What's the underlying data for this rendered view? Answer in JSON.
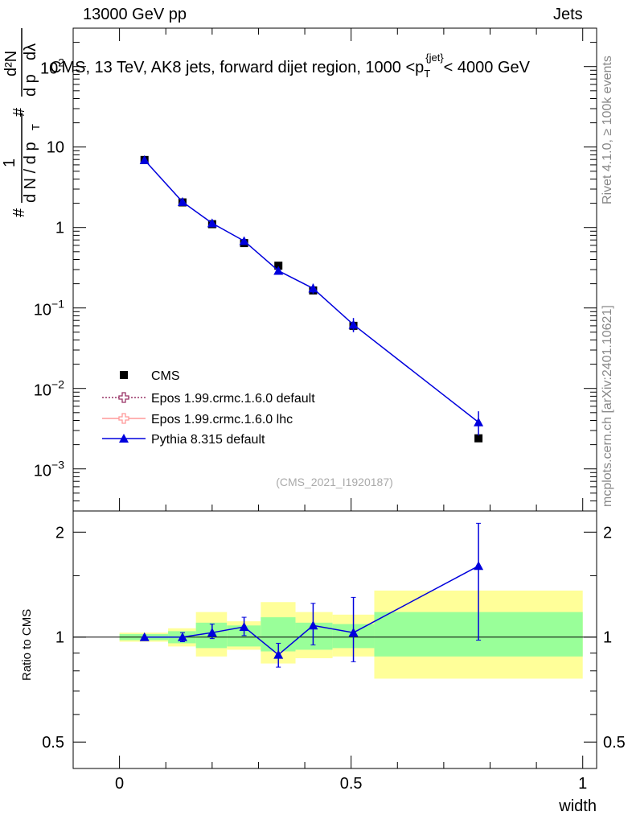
{
  "header": {
    "left": "13000 GeV pp",
    "right": "Jets"
  },
  "side_texts": {
    "rivet": "Rivet 4.1.0, ≥ 100k events",
    "mcplots": "mcplots.cern.ch [arXiv:2401.10621]"
  },
  "chart_data": [
    {
      "type": "line",
      "title": "CMS, 13 TeV, AK8 jets, forward dijet region, 1000 <p_T^{jet}< 4000 GeV",
      "title_parts": {
        "a": "CMS, 13 TeV, AK8 jets, forward dijet region, 1000 <p",
        "sup": "{jet}",
        "sub": "T",
        "b": "< 4000 GeV"
      },
      "ylabel_parts": {
        "hash1": "#",
        "one": "1",
        "dN": "d N / d p",
        "sub": "T",
        "hash2": "#",
        "d2N": "d²N",
        "dpTdl": "d p",
        "dl": "dλ"
      },
      "yscale": "log",
      "xlim": [
        -0.1,
        1.03
      ],
      "ylim": [
        0.0003,
        300
      ],
      "yticks": [
        {
          "value": 0.001,
          "base": "10",
          "exp": "−3"
        },
        {
          "value": 0.01,
          "base": "10",
          "exp": "−2"
        },
        {
          "value": 0.1,
          "base": "10",
          "exp": "−1"
        },
        {
          "value": 1,
          "label": "1"
        },
        {
          "value": 10,
          "label": "10"
        },
        {
          "value": 100,
          "base": "10",
          "exp": "2"
        }
      ],
      "watermark": "(CMS_2021_I1920187)",
      "series": [
        {
          "name": "CMS",
          "marker": "square",
          "color": "#000000",
          "x": [
            0.054,
            0.136,
            0.2,
            0.269,
            0.343,
            0.418,
            0.505,
            0.775
          ],
          "y": [
            6.9,
            2.05,
            1.1,
            0.64,
            0.335,
            0.165,
            0.06,
            0.0024
          ],
          "err_low": [
            6.6,
            1.95,
            1.04,
            0.6,
            0.31,
            0.15,
            0.052,
            0.0023
          ],
          "err_high": [
            7.2,
            2.15,
            1.16,
            0.68,
            0.36,
            0.18,
            0.068,
            0.0025
          ]
        },
        {
          "name": "Epos 1.99.crmc.1.6.0 default",
          "marker": "open-cross",
          "color": "#993366",
          "x": [],
          "y": []
        },
        {
          "name": "Epos 1.99.crmc.1.6.0 lhc",
          "marker": "open-cross",
          "color": "#ff9999",
          "x": [],
          "y": []
        },
        {
          "name": "Pythia 8.315 default",
          "marker": "triangle",
          "color": "#0000dd",
          "x": [
            0.054,
            0.136,
            0.2,
            0.269,
            0.343,
            0.418,
            0.505,
            0.775
          ],
          "y": [
            6.9,
            2.08,
            1.13,
            0.68,
            0.29,
            0.175,
            0.062,
            0.0038
          ],
          "err_low": [
            6.7,
            1.98,
            1.06,
            0.62,
            0.265,
            0.15,
            0.05,
            0.0026
          ],
          "err_high": [
            7.1,
            2.18,
            1.2,
            0.74,
            0.315,
            0.2,
            0.075,
            0.0052
          ]
        }
      ],
      "legend": {
        "position": "bottom-left",
        "entries": [
          "CMS",
          "Epos 1.99.crmc.1.6.0 default",
          "Epos 1.99.crmc.1.6.0 lhc",
          "Pythia 8.315 default"
        ]
      }
    },
    {
      "type": "line",
      "ylabel": "Ratio to CMS",
      "xlabel": "width",
      "xlim": [
        -0.1,
        1.03
      ],
      "ylim": [
        0.42,
        2.3
      ],
      "yscale": "log",
      "yticks": [
        {
          "value": 0.5,
          "label": "0.5"
        },
        {
          "value": 1,
          "label": "1"
        },
        {
          "value": 2,
          "label": "2"
        }
      ],
      "xticks": [
        {
          "value": 0,
          "label": "0"
        },
        {
          "value": 0.5,
          "label": "0.5"
        },
        {
          "value": 1,
          "label": "1"
        }
      ],
      "bands": [
        {
          "x0": 0.0,
          "x1": 0.105,
          "yellow": [
            0.97,
            1.03
          ],
          "green": [
            0.98,
            1.02
          ]
        },
        {
          "x0": 0.105,
          "x1": 0.165,
          "yellow": [
            0.94,
            1.06
          ],
          "green": [
            0.96,
            1.04
          ]
        },
        {
          "x0": 0.165,
          "x1": 0.232,
          "yellow": [
            0.88,
            1.18
          ],
          "green": [
            0.93,
            1.1
          ]
        },
        {
          "x0": 0.232,
          "x1": 0.305,
          "yellow": [
            0.92,
            1.11
          ],
          "green": [
            0.94,
            1.08
          ]
        },
        {
          "x0": 0.305,
          "x1": 0.38,
          "yellow": [
            0.84,
            1.26
          ],
          "green": [
            0.91,
            1.14
          ]
        },
        {
          "x0": 0.38,
          "x1": 0.46,
          "yellow": [
            0.87,
            1.18
          ],
          "green": [
            0.92,
            1.1
          ]
        },
        {
          "x0": 0.46,
          "x1": 0.55,
          "yellow": [
            0.88,
            1.16
          ],
          "green": [
            0.93,
            1.09
          ]
        },
        {
          "x0": 0.55,
          "x1": 1.0,
          "yellow": [
            0.76,
            1.36
          ],
          "green": [
            0.88,
            1.18
          ]
        }
      ],
      "series": [
        {
          "name": "Pythia 8.315 default",
          "color": "#0000dd",
          "x": [
            0.054,
            0.136,
            0.2,
            0.269,
            0.343,
            0.418,
            0.505,
            0.775
          ],
          "y": [
            1.0,
            1.0,
            1.03,
            1.07,
            0.89,
            1.08,
            1.03,
            1.6
          ],
          "err_low": [
            1.0,
            0.97,
            0.99,
            1.01,
            0.82,
            0.95,
            0.85,
            0.98
          ],
          "err_high": [
            1.0,
            1.03,
            1.09,
            1.14,
            0.96,
            1.25,
            1.3,
            2.12
          ]
        }
      ]
    }
  ]
}
